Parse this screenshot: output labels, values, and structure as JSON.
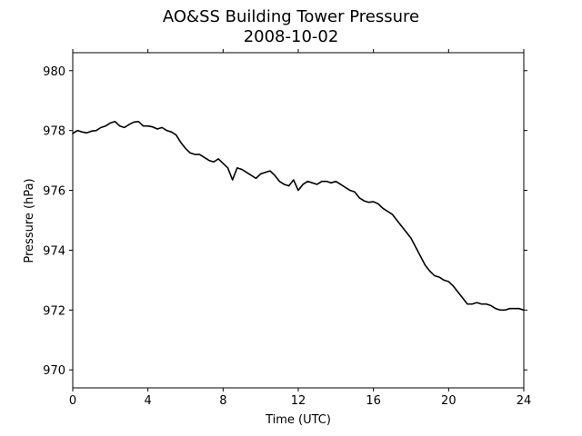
{
  "chart_data": {
    "type": "line",
    "title": "AO&SS Building Tower Pressure",
    "subtitle": "2008-10-02",
    "xlabel": "Time (UTC)",
    "ylabel": "Pressure (hPa)",
    "xlim": [
      0,
      24
    ],
    "ylim": [
      969.4,
      980.6
    ],
    "xticks": [
      0,
      4,
      8,
      12,
      16,
      20,
      24
    ],
    "yticks": [
      970,
      972,
      974,
      976,
      978,
      980
    ],
    "grid": false,
    "line_color": "#000000",
    "series": [
      {
        "x": [
          0,
          0.25,
          0.5,
          0.75,
          1.0,
          1.25,
          1.5,
          1.75,
          2.0,
          2.25,
          2.5,
          2.75,
          3.0,
          3.25,
          3.5,
          3.75,
          4.0,
          4.25,
          4.5,
          4.75,
          5.0,
          5.25,
          5.5,
          5.75,
          6.0,
          6.25,
          6.5,
          6.75,
          7.0,
          7.25,
          7.5,
          7.75,
          8.0,
          8.25,
          8.5,
          8.75,
          9.0,
          9.25,
          9.5,
          9.75,
          10.0,
          10.25,
          10.5,
          10.75,
          11.0,
          11.25,
          11.5,
          11.75,
          12.0,
          12.25,
          12.5,
          12.75,
          13.0,
          13.25,
          13.5,
          13.75,
          14.0,
          14.25,
          14.5,
          14.75,
          15.0,
          15.25,
          15.5,
          15.75,
          16.0,
          16.25,
          16.5,
          16.75,
          17.0,
          17.25,
          17.5,
          17.75,
          18.0,
          18.25,
          18.5,
          18.75,
          19.0,
          19.25,
          19.5,
          19.75,
          20.0,
          20.25,
          20.5,
          20.75,
          21.0,
          21.25,
          21.5,
          21.75,
          22.0,
          22.25,
          22.5,
          22.75,
          23.0,
          23.25,
          23.5,
          23.75,
          24.0
        ],
        "values": [
          977.9,
          978.0,
          977.95,
          977.92,
          977.98,
          978.0,
          978.1,
          978.15,
          978.25,
          978.3,
          978.15,
          978.1,
          978.2,
          978.28,
          978.3,
          978.15,
          978.15,
          978.12,
          978.05,
          978.1,
          978.0,
          977.95,
          977.85,
          977.6,
          977.4,
          977.25,
          977.2,
          977.2,
          977.1,
          977.0,
          976.95,
          977.05,
          976.9,
          976.75,
          976.35,
          976.75,
          976.7,
          976.6,
          976.5,
          976.4,
          976.55,
          976.6,
          976.65,
          976.5,
          976.3,
          976.2,
          976.15,
          976.35,
          976.0,
          976.2,
          976.3,
          976.25,
          976.2,
          976.3,
          976.3,
          976.25,
          976.3,
          976.2,
          976.1,
          976.0,
          975.95,
          975.75,
          975.65,
          975.6,
          975.62,
          975.55,
          975.4,
          975.3,
          975.2,
          975.0,
          974.8,
          974.6,
          974.4,
          974.1,
          973.8,
          973.5,
          973.3,
          973.15,
          973.1,
          973.0,
          972.95,
          972.8,
          972.6,
          972.4,
          972.2,
          972.2,
          972.25,
          972.2,
          972.2,
          972.15,
          972.05,
          972.0,
          972.0,
          972.05,
          972.05,
          972.05,
          972.0
        ]
      }
    ]
  }
}
